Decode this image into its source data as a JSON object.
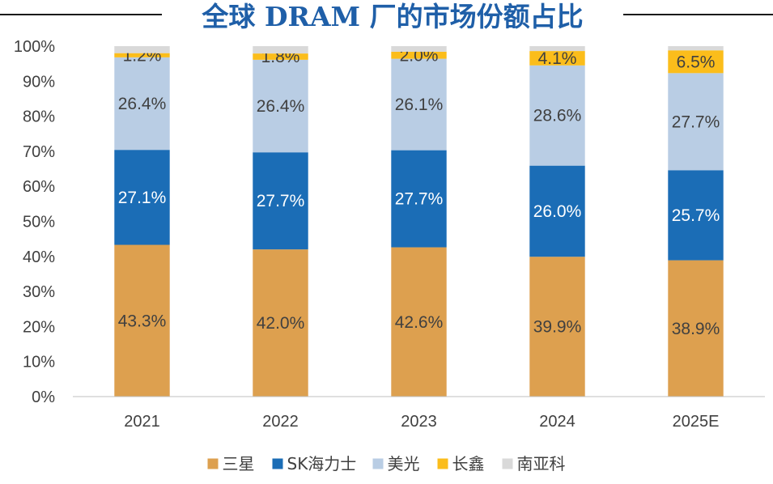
{
  "chart_data": {
    "type": "bar",
    "stacked": true,
    "title": "全球 DRAM 厂的市场份额占比",
    "categories": [
      "2021",
      "2022",
      "2023",
      "2024",
      "2025E"
    ],
    "ylim": [
      0,
      100
    ],
    "y_ticks": [
      "0%",
      "10%",
      "20%",
      "30%",
      "40%",
      "50%",
      "60%",
      "70%",
      "80%",
      "90%",
      "100%"
    ],
    "grid": false,
    "legend_position": "bottom",
    "series": [
      {
        "name": "三星",
        "color": "#dda04f",
        "values": [
          43.3,
          42.0,
          42.6,
          39.9,
          38.9
        ],
        "labels": [
          "43.3%",
          "42.0%",
          "42.6%",
          "39.9%",
          "38.9%"
        ],
        "label_color": "dark"
      },
      {
        "name": "SK海力士",
        "color": "#1b6db6",
        "values": [
          27.1,
          27.7,
          27.7,
          26.0,
          25.7
        ],
        "labels": [
          "27.1%",
          "27.7%",
          "27.7%",
          "26.0%",
          "25.7%"
        ],
        "label_color": "light"
      },
      {
        "name": "美光",
        "color": "#b9cde4",
        "values": [
          26.4,
          26.4,
          26.1,
          28.6,
          27.7
        ],
        "labels": [
          "26.4%",
          "26.4%",
          "26.1%",
          "28.6%",
          "27.7%"
        ],
        "label_color": "dark"
      },
      {
        "name": "长鑫",
        "color": "#fbbd1b",
        "values": [
          1.2,
          1.8,
          2.0,
          4.1,
          6.5
        ],
        "labels": [
          "1.2%",
          "1.8%",
          "2.0%",
          "4.1%",
          "6.5%"
        ],
        "label_color": "dark"
      },
      {
        "name": "南亚科",
        "color": "#d9d9d9",
        "values": [
          2.0,
          2.1,
          1.6,
          1.4,
          1.2
        ],
        "labels": null,
        "label_color": "dark"
      }
    ]
  }
}
